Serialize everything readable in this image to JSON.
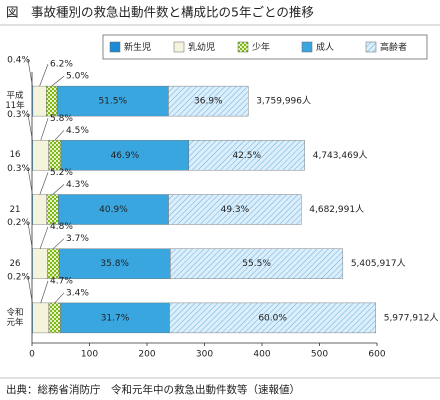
{
  "chart_data": {
    "type": "stacked_barh",
    "title": "図　事故種別の救急出動件数と構成比の5年ごとの推移",
    "source": "出典：総務省消防庁　令和元年中の救急出動件数等（速報値）",
    "categories": [
      "平成\n11年",
      "16",
      "21",
      "26",
      "令和\n元年"
    ],
    "series": [
      {
        "name": "新生児",
        "color": "#1a8bd4",
        "pattern": null,
        "values": [
          0.4,
          0.3,
          0.3,
          0.2,
          0.2
        ],
        "value_labels": [
          "0.4%",
          "0.3%",
          "0.3%",
          "0.2%",
          "0.2%"
        ]
      },
      {
        "name": "乳幼児",
        "color": "#f4f4dd",
        "pattern": null,
        "values": [
          6.2,
          5.8,
          5.2,
          4.8,
          4.7
        ],
        "value_labels": [
          "6.2%",
          "5.8%",
          "5.2%",
          "4.8%",
          "4.7%"
        ]
      },
      {
        "name": "少年",
        "color": "#8cc21f",
        "pattern": "check",
        "values": [
          5.0,
          4.5,
          4.3,
          3.7,
          3.4
        ],
        "value_labels": [
          "5.0%",
          "4.5%",
          "4.3%",
          "3.7%",
          "3.4%"
        ]
      },
      {
        "name": "成人",
        "color": "#3aa6e0",
        "pattern": null,
        "values": [
          51.5,
          46.9,
          40.9,
          35.8,
          31.7
        ],
        "value_labels": [
          "51.5%",
          "46.9%",
          "40.9%",
          "35.8%",
          "31.7%"
        ]
      },
      {
        "name": "高齢者",
        "color": "#8fc3ea",
        "pattern": "hatch",
        "values": [
          36.9,
          42.5,
          49.3,
          55.5,
          60.0
        ],
        "value_labels": [
          "36.9%",
          "42.5%",
          "49.3%",
          "55.5%",
          "60.0%"
        ]
      }
    ],
    "totals": {
      "values": [
        375.9996,
        474.3469,
        468.2991,
        540.5917,
        597.7912
      ],
      "value_labels": [
        "3,759,996人",
        "4,743,469人",
        "4,682,991人",
        "5,405,917人",
        "5,977,912人"
      ]
    },
    "xlim": [
      0,
      600
    ],
    "xticks": [
      0,
      100,
      200,
      300,
      400,
      500,
      600
    ],
    "legend": "top-right"
  }
}
